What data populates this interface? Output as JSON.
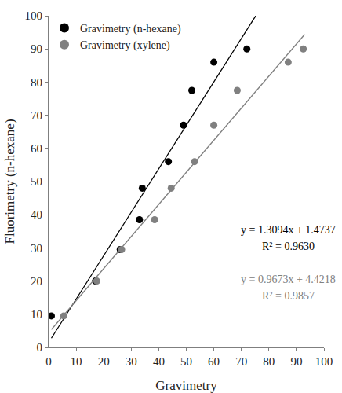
{
  "chart_data": {
    "type": "scatter",
    "x_label": "Gravimetry",
    "y_label": "Fluorimetry (n-hexane)",
    "xlim": [
      0,
      100
    ],
    "ylim": [
      0,
      100
    ],
    "xticks": [
      0,
      10,
      20,
      30,
      40,
      50,
      60,
      70,
      80,
      90,
      100
    ],
    "yticks": [
      0,
      10,
      20,
      30,
      40,
      50,
      60,
      70,
      80,
      90,
      100
    ],
    "grid": false,
    "legend": "upper left",
    "series": [
      {
        "name": "Gravimetry (n-hexane)",
        "color": "#000000",
        "marker": "circle",
        "x": [
          1,
          17,
          26,
          33,
          34,
          43.5,
          49,
          52,
          60,
          72
        ],
        "values": [
          9.5,
          20,
          29.5,
          38.5,
          48,
          56,
          67,
          77.5,
          86,
          90
        ],
        "trendline": {
          "slope": 1.3094,
          "intercept": 1.4737,
          "x_range": [
            1,
            100
          ]
        }
      },
      {
        "name": "Gravimetry (xylene)",
        "color": "#808080",
        "marker": "circle",
        "x": [
          5.5,
          17.5,
          26.5,
          38.5,
          44.5,
          53,
          60,
          68.5,
          87,
          92.5
        ],
        "values": [
          9.5,
          20,
          29.5,
          38.5,
          48,
          56,
          67,
          77.5,
          86,
          90
        ],
        "trendline": {
          "slope": 0.9673,
          "intercept": 4.4218,
          "x_range": [
            1,
            93
          ]
        }
      }
    ],
    "annotations": [
      {
        "text": "y = 1.3094x + 1.4737",
        "color": "#000000"
      },
      {
        "text": "R² = 0.9630",
        "color": "#000000"
      },
      {
        "text": "y = 0.9673x + 4.4218",
        "color": "#808080"
      },
      {
        "text": "R² = 0.9857",
        "color": "#808080"
      }
    ]
  }
}
